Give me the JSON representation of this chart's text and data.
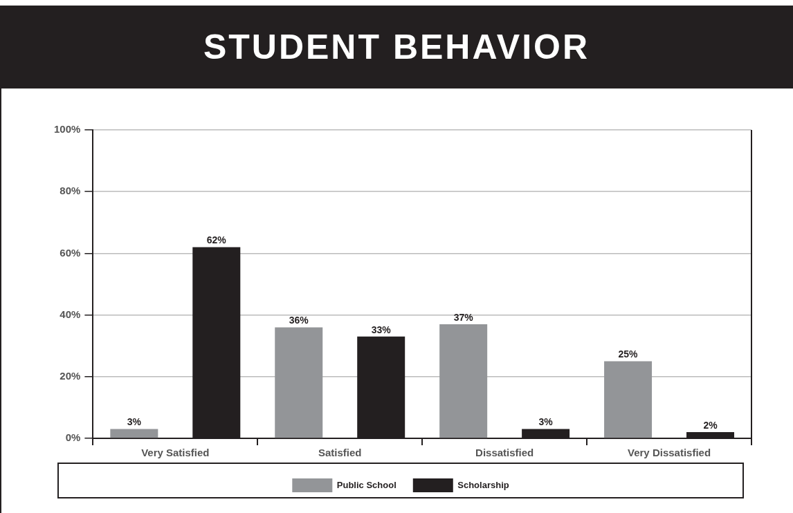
{
  "chart_data": {
    "type": "bar",
    "title": "STUDENT BEHAVIOR",
    "categories": [
      "Very Satisfied",
      "Satisfied",
      "Dissatisfied",
      "Very Dissatisfied"
    ],
    "series": [
      {
        "name": "Public School",
        "color": "#939598",
        "values": [
          3,
          36,
          37,
          25
        ],
        "value_labels": [
          "3%",
          "36%",
          "37%",
          "25%"
        ]
      },
      {
        "name": "Scholarship",
        "color": "#231f20",
        "values": [
          62,
          33,
          3,
          2
        ],
        "value_labels": [
          "62%",
          "33%",
          "3%",
          "2%"
        ]
      }
    ],
    "ylim": [
      0,
      100
    ],
    "yticks": [
      {
        "value": 0,
        "label": "0%"
      },
      {
        "value": 20,
        "label": "20%"
      },
      {
        "value": 40,
        "label": "40%"
      },
      {
        "value": 60,
        "label": "60%"
      },
      {
        "value": 80,
        "label": "80%"
      },
      {
        "value": 100,
        "label": "100%"
      }
    ],
    "grid": "y",
    "legend": "bottom"
  }
}
